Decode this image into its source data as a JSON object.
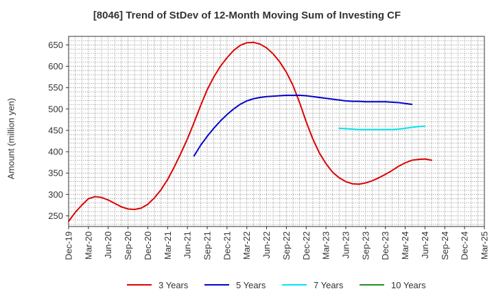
{
  "chart_data": {
    "type": "line",
    "title": "[8046]  Trend of StDev of 12-Month Moving Sum of Investing CF",
    "ylabel": "Amount (million yen)",
    "xlabel": "",
    "ylim": [
      225,
      670
    ],
    "yticks": [
      250,
      300,
      350,
      400,
      450,
      500,
      550,
      600,
      650
    ],
    "xlim": [
      "2019-12",
      "2025-03"
    ],
    "xticks": [
      "Dec-19",
      "Mar-20",
      "Jun-20",
      "Sep-20",
      "Dec-20",
      "Mar-21",
      "Jun-21",
      "Sep-21",
      "Dec-21",
      "Mar-22",
      "Jun-22",
      "Sep-22",
      "Dec-22",
      "Mar-23",
      "Jun-23",
      "Sep-23",
      "Dec-23",
      "Mar-24",
      "Jun-24",
      "Sep-24",
      "Dec-24",
      "Mar-25"
    ],
    "grid": true,
    "legend_position": "bottom",
    "series": [
      {
        "name": "3 Years",
        "color": "#dd0000",
        "points": [
          [
            "2019-12",
            237
          ],
          [
            "2020-01",
            258
          ],
          [
            "2020-02",
            275
          ],
          [
            "2020-03",
            290
          ],
          [
            "2020-04",
            295
          ],
          [
            "2020-05",
            293
          ],
          [
            "2020-06",
            287
          ],
          [
            "2020-07",
            279
          ],
          [
            "2020-08",
            271
          ],
          [
            "2020-09",
            266
          ],
          [
            "2020-10",
            265
          ],
          [
            "2020-11",
            268
          ],
          [
            "2020-12",
            277
          ],
          [
            "2021-01",
            292
          ],
          [
            "2021-02",
            311
          ],
          [
            "2021-03",
            335
          ],
          [
            "2021-04",
            364
          ],
          [
            "2021-05",
            396
          ],
          [
            "2021-06",
            430
          ],
          [
            "2021-07",
            468
          ],
          [
            "2021-08",
            508
          ],
          [
            "2021-09",
            545
          ],
          [
            "2021-10",
            575
          ],
          [
            "2021-11",
            600
          ],
          [
            "2021-12",
            620
          ],
          [
            "2022-01",
            637
          ],
          [
            "2022-02",
            649
          ],
          [
            "2022-03",
            655
          ],
          [
            "2022-04",
            656
          ],
          [
            "2022-05",
            652
          ],
          [
            "2022-06",
            643
          ],
          [
            "2022-07",
            629
          ],
          [
            "2022-08",
            610
          ],
          [
            "2022-09",
            586
          ],
          [
            "2022-10",
            555
          ],
          [
            "2022-11",
            515
          ],
          [
            "2022-12",
            470
          ],
          [
            "2023-01",
            430
          ],
          [
            "2023-02",
            397
          ],
          [
            "2023-03",
            372
          ],
          [
            "2023-04",
            352
          ],
          [
            "2023-05",
            339
          ],
          [
            "2023-06",
            330
          ],
          [
            "2023-07",
            325
          ],
          [
            "2023-08",
            324
          ],
          [
            "2023-09",
            327
          ],
          [
            "2023-10",
            332
          ],
          [
            "2023-11",
            339
          ],
          [
            "2023-12",
            347
          ],
          [
            "2024-01",
            356
          ],
          [
            "2024-02",
            366
          ],
          [
            "2024-03",
            374
          ],
          [
            "2024-04",
            380
          ],
          [
            "2024-05",
            382
          ],
          [
            "2024-06",
            383
          ],
          [
            "2024-07",
            380
          ]
        ]
      },
      {
        "name": "5 Years",
        "color": "#0000cc",
        "points": [
          [
            "2021-07",
            390
          ],
          [
            "2021-08",
            415
          ],
          [
            "2021-09",
            436
          ],
          [
            "2021-10",
            455
          ],
          [
            "2021-11",
            472
          ],
          [
            "2021-12",
            487
          ],
          [
            "2022-01",
            500
          ],
          [
            "2022-02",
            511
          ],
          [
            "2022-03",
            519
          ],
          [
            "2022-04",
            524
          ],
          [
            "2022-05",
            527
          ],
          [
            "2022-06",
            529
          ],
          [
            "2022-07",
            530
          ],
          [
            "2022-08",
            531
          ],
          [
            "2022-09",
            532
          ],
          [
            "2022-10",
            532
          ],
          [
            "2022-11",
            532
          ],
          [
            "2022-12",
            531
          ],
          [
            "2023-01",
            529
          ],
          [
            "2023-02",
            527
          ],
          [
            "2023-03",
            525
          ],
          [
            "2023-04",
            523
          ],
          [
            "2023-05",
            521
          ],
          [
            "2023-06",
            519
          ],
          [
            "2023-07",
            518
          ],
          [
            "2023-08",
            518
          ],
          [
            "2023-09",
            517
          ],
          [
            "2023-10",
            517
          ],
          [
            "2023-11",
            517
          ],
          [
            "2023-12",
            517
          ],
          [
            "2024-01",
            516
          ],
          [
            "2024-02",
            515
          ],
          [
            "2024-03",
            513
          ],
          [
            "2024-04",
            511
          ]
        ]
      },
      {
        "name": "7 Years",
        "color": "#00e5ee",
        "points": [
          [
            "2023-05",
            455
          ],
          [
            "2023-06",
            454
          ],
          [
            "2023-07",
            453
          ],
          [
            "2023-08",
            452
          ],
          [
            "2023-09",
            452
          ],
          [
            "2023-10",
            452
          ],
          [
            "2023-11",
            452
          ],
          [
            "2023-12",
            452
          ],
          [
            "2024-01",
            452
          ],
          [
            "2024-02",
            453
          ],
          [
            "2024-03",
            455
          ],
          [
            "2024-04",
            457
          ],
          [
            "2024-05",
            459
          ],
          [
            "2024-06",
            460
          ]
        ]
      },
      {
        "name": "10 Years",
        "color": "#228b22",
        "points": []
      }
    ]
  }
}
